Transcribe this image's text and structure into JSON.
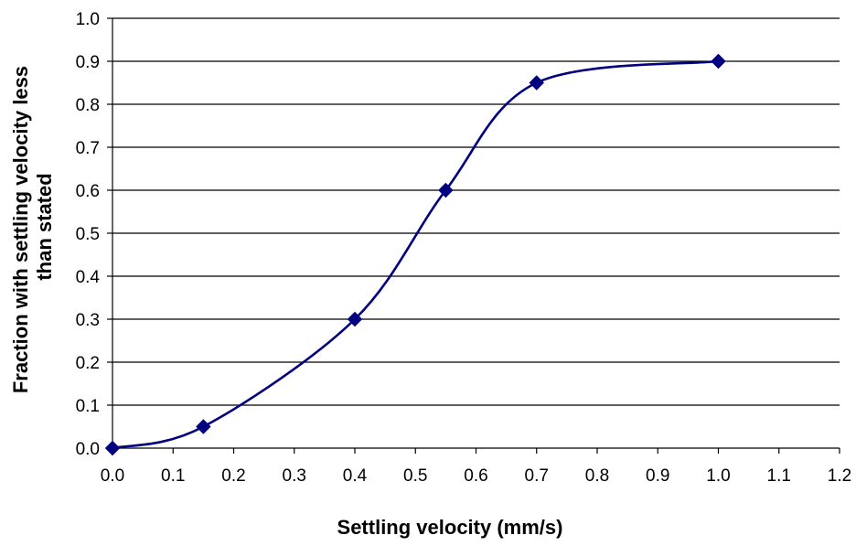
{
  "chart_data": {
    "type": "line",
    "title": "",
    "xlabel": "Settling velocity (mm/s)",
    "ylabel_lines": [
      "Fraction with settling velocity less",
      "than stated"
    ],
    "xlim": [
      0.0,
      1.2
    ],
    "ylim": [
      0.0,
      1.0
    ],
    "x_ticks": [
      "0.0",
      "0.1",
      "0.2",
      "0.3",
      "0.4",
      "0.5",
      "0.6",
      "0.7",
      "0.8",
      "0.9",
      "1.0",
      "1.1",
      "1.2"
    ],
    "y_ticks": [
      "0.0",
      "0.1",
      "0.2",
      "0.3",
      "0.4",
      "0.5",
      "0.6",
      "0.7",
      "0.8",
      "0.9",
      "1.0"
    ],
    "grid": "horizontal",
    "legend": "none",
    "smoothed": true,
    "series": [
      {
        "color": "#000080",
        "marker": "diamond",
        "points": [
          {
            "x": 0.0,
            "y": 0.0
          },
          {
            "x": 0.15,
            "y": 0.05
          },
          {
            "x": 0.4,
            "y": 0.3
          },
          {
            "x": 0.55,
            "y": 0.6
          },
          {
            "x": 0.7,
            "y": 0.85
          },
          {
            "x": 1.0,
            "y": 0.9
          }
        ]
      }
    ]
  }
}
